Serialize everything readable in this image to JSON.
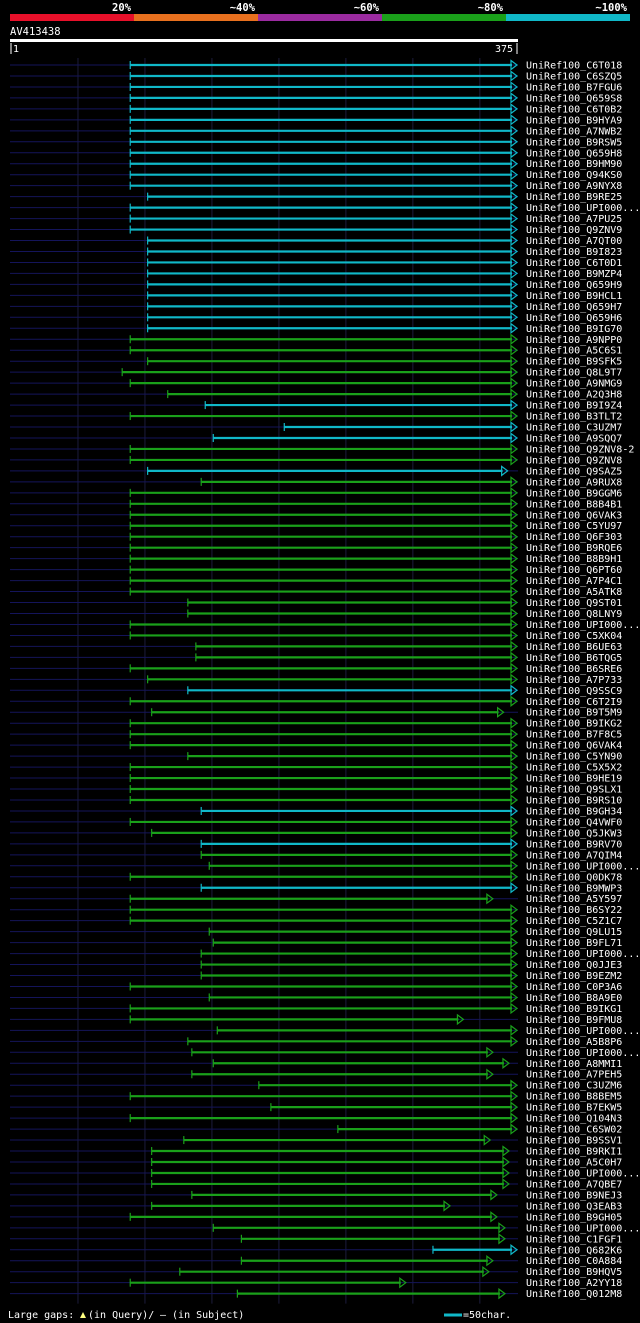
{
  "chart_data": {
    "type": "alignment-overview",
    "title": "AV413438",
    "query_length": 375,
    "scale": {
      "start_label": "1",
      "end_label": "375"
    },
    "identity_legend": [
      {
        "label": "20%",
        "color": "#e8102a"
      },
      {
        "label": "~40%",
        "color": "#e8701e"
      },
      {
        "label": "~60%",
        "color": "#9b2ba0"
      },
      {
        "label": "~80%",
        "color": "#1aa01a"
      },
      {
        "label": "~100%",
        "color": "#10b8c8"
      }
    ],
    "footer": {
      "gaps_label": "Large gaps:",
      "gaps_query": "(in Query)/",
      "gaps_subject": "– (in Subject)",
      "scale_label": "=50char."
    },
    "hits": [
      {
        "label": "UniRef100_C6T018",
        "start": 90,
        "end": 375,
        "color": "#10b8c8"
      },
      {
        "label": "UniRef100_C6SZQ5",
        "start": 90,
        "end": 375,
        "color": "#10b8c8"
      },
      {
        "label": "UniRef100_B7FGU6",
        "start": 90,
        "end": 375,
        "color": "#10b8c8"
      },
      {
        "label": "UniRef100_Q659S8",
        "start": 90,
        "end": 375,
        "color": "#10b8c8"
      },
      {
        "label": "UniRef100_C6T0B2",
        "start": 90,
        "end": 375,
        "color": "#10b8c8"
      },
      {
        "label": "UniRef100_B9HYA9",
        "start": 90,
        "end": 375,
        "color": "#10b8c8"
      },
      {
        "label": "UniRef100_A7NWB2",
        "start": 90,
        "end": 375,
        "color": "#10b8c8"
      },
      {
        "label": "UniRef100_B9RSW5",
        "start": 90,
        "end": 375,
        "color": "#10b8c8"
      },
      {
        "label": "UniRef100_Q659H8",
        "start": 90,
        "end": 375,
        "color": "#10b8c8"
      },
      {
        "label": "UniRef100_B9HM90",
        "start": 90,
        "end": 375,
        "color": "#10b8c8"
      },
      {
        "label": "UniRef100_Q94KS0",
        "start": 90,
        "end": 375,
        "color": "#10b8c8"
      },
      {
        "label": "UniRef100_A9NYX8",
        "start": 90,
        "end": 375,
        "color": "#10b8c8"
      },
      {
        "label": "UniRef100_B9RE25",
        "start": 103,
        "end": 375,
        "color": "#10b8c8"
      },
      {
        "label": "UniRef100_UPI000...",
        "start": 90,
        "end": 375,
        "color": "#10b8c8"
      },
      {
        "label": "UniRef100_A7PU25",
        "start": 90,
        "end": 375,
        "color": "#10b8c8"
      },
      {
        "label": "UniRef100_Q9ZNV9",
        "start": 90,
        "end": 375,
        "color": "#10b8c8"
      },
      {
        "label": "UniRef100_A7QT00",
        "start": 103,
        "end": 375,
        "color": "#10b8c8"
      },
      {
        "label": "UniRef100_B9I823",
        "start": 103,
        "end": 375,
        "color": "#10b8c8"
      },
      {
        "label": "UniRef100_C6T0D1",
        "start": 103,
        "end": 375,
        "color": "#10b8c8"
      },
      {
        "label": "UniRef100_B9MZP4",
        "start": 103,
        "end": 375,
        "color": "#10b8c8"
      },
      {
        "label": "UniRef100_Q659H9",
        "start": 103,
        "end": 375,
        "color": "#10b8c8"
      },
      {
        "label": "UniRef100_B9HCL1",
        "start": 103,
        "end": 375,
        "color": "#10b8c8"
      },
      {
        "label": "UniRef100_Q659H7",
        "start": 103,
        "end": 375,
        "color": "#10b8c8"
      },
      {
        "label": "UniRef100_Q659H6",
        "start": 103,
        "end": 375,
        "color": "#10b8c8"
      },
      {
        "label": "UniRef100_B9IG70",
        "start": 103,
        "end": 375,
        "color": "#10b8c8"
      },
      {
        "label": "UniRef100_A9NPP0",
        "start": 90,
        "end": 375,
        "color": "#1aa01a"
      },
      {
        "label": "UniRef100_A5C6S1",
        "start": 90,
        "end": 375,
        "color": "#1aa01a"
      },
      {
        "label": "UniRef100_B9SFK5",
        "start": 103,
        "end": 375,
        "color": "#1aa01a"
      },
      {
        "label": "UniRef100_Q8L9T7",
        "start": 84,
        "end": 375,
        "color": "#1aa01a"
      },
      {
        "label": "UniRef100_A9NMG9",
        "start": 90,
        "end": 375,
        "color": "#1aa01a"
      },
      {
        "label": "UniRef100_A2Q3H8",
        "start": 118,
        "end": 375,
        "color": "#1aa01a"
      },
      {
        "label": "UniRef100_B9I9Z4",
        "start": 146,
        "end": 375,
        "color": "#10b8c8"
      },
      {
        "label": "UniRef100_B3TLT2",
        "start": 90,
        "end": 375,
        "color": "#1aa01a"
      },
      {
        "label": "UniRef100_C3UZM7",
        "start": 205,
        "end": 375,
        "color": "#10b8c8"
      },
      {
        "label": "UniRef100_A9SQQ7",
        "start": 152,
        "end": 375,
        "color": "#10b8c8"
      },
      {
        "label": "UniRef100_Q9ZNV8-2",
        "start": 90,
        "end": 375,
        "color": "#1aa01a"
      },
      {
        "label": "UniRef100_Q9ZNV8",
        "start": 90,
        "end": 375,
        "color": "#1aa01a"
      },
      {
        "label": "UniRef100_Q9SAZ5",
        "start": 103,
        "end": 368,
        "color": "#10b8c8"
      },
      {
        "label": "UniRef100_A9RUX8",
        "start": 143,
        "end": 375,
        "color": "#1aa01a"
      },
      {
        "label": "UniRef100_B9GGM6",
        "start": 90,
        "end": 375,
        "color": "#1aa01a"
      },
      {
        "label": "UniRef100_B8B4B1",
        "start": 90,
        "end": 375,
        "color": "#1aa01a"
      },
      {
        "label": "UniRef100_Q6VAK3",
        "start": 90,
        "end": 375,
        "color": "#1aa01a"
      },
      {
        "label": "UniRef100_C5YU97",
        "start": 90,
        "end": 375,
        "color": "#1aa01a"
      },
      {
        "label": "UniRef100_Q6F303",
        "start": 90,
        "end": 375,
        "color": "#1aa01a"
      },
      {
        "label": "UniRef100_B9RQE6",
        "start": 90,
        "end": 375,
        "color": "#1aa01a"
      },
      {
        "label": "UniRef100_B8B9H1",
        "start": 90,
        "end": 375,
        "color": "#1aa01a"
      },
      {
        "label": "UniRef100_Q6PT60",
        "start": 90,
        "end": 375,
        "color": "#1aa01a"
      },
      {
        "label": "UniRef100_A7P4C1",
        "start": 90,
        "end": 375,
        "color": "#1aa01a"
      },
      {
        "label": "UniRef100_A5ATK8",
        "start": 90,
        "end": 375,
        "color": "#1aa01a"
      },
      {
        "label": "UniRef100_Q9ST01",
        "start": 133,
        "end": 375,
        "color": "#1aa01a"
      },
      {
        "label": "UniRef100_Q8LNY9",
        "start": 133,
        "end": 375,
        "color": "#1aa01a"
      },
      {
        "label": "UniRef100_UPI000...",
        "start": 90,
        "end": 375,
        "color": "#1aa01a"
      },
      {
        "label": "UniRef100_C5XK04",
        "start": 90,
        "end": 375,
        "color": "#1aa01a"
      },
      {
        "label": "UniRef100_B6UE63",
        "start": 139,
        "end": 375,
        "color": "#1aa01a"
      },
      {
        "label": "UniRef100_B6TQG5",
        "start": 139,
        "end": 375,
        "color": "#1aa01a"
      },
      {
        "label": "UniRef100_B6SRE6",
        "start": 90,
        "end": 375,
        "color": "#1aa01a"
      },
      {
        "label": "UniRef100_A7P733",
        "start": 103,
        "end": 375,
        "color": "#1aa01a"
      },
      {
        "label": "UniRef100_Q9SSC9",
        "start": 133,
        "end": 375,
        "color": "#10b8c8"
      },
      {
        "label": "UniRef100_C6T2I9",
        "start": 90,
        "end": 375,
        "color": "#1aa01a"
      },
      {
        "label": "UniRef100_B9T5M9",
        "start": 106,
        "end": 365,
        "color": "#1aa01a"
      },
      {
        "label": "UniRef100_B9IKG2",
        "start": 90,
        "end": 375,
        "color": "#1aa01a"
      },
      {
        "label": "UniRef100_B7F8C5",
        "start": 90,
        "end": 375,
        "color": "#1aa01a"
      },
      {
        "label": "UniRef100_Q6VAK4",
        "start": 90,
        "end": 375,
        "color": "#1aa01a"
      },
      {
        "label": "UniRef100_C5YN90",
        "start": 133,
        "end": 375,
        "color": "#1aa01a"
      },
      {
        "label": "UniRef100_C5X5X2",
        "start": 90,
        "end": 375,
        "color": "#1aa01a"
      },
      {
        "label": "UniRef100_B9HE19",
        "start": 90,
        "end": 375,
        "color": "#1aa01a"
      },
      {
        "label": "UniRef100_Q9SLX1",
        "start": 90,
        "end": 375,
        "color": "#1aa01a"
      },
      {
        "label": "UniRef100_B9RS10",
        "start": 90,
        "end": 375,
        "color": "#1aa01a"
      },
      {
        "label": "UniRef100_B9GH34",
        "start": 143,
        "end": 375,
        "color": "#10b8c8"
      },
      {
        "label": "UniRef100_Q4VWF0",
        "start": 90,
        "end": 375,
        "color": "#1aa01a"
      },
      {
        "label": "UniRef100_Q5JKW3",
        "start": 106,
        "end": 375,
        "color": "#1aa01a"
      },
      {
        "label": "UniRef100_B9RV70",
        "start": 143,
        "end": 375,
        "color": "#10b8c8"
      },
      {
        "label": "UniRef100_A7QIM4",
        "start": 143,
        "end": 375,
        "color": "#1aa01a"
      },
      {
        "label": "UniRef100_UPI000...",
        "start": 149,
        "end": 375,
        "color": "#1aa01a"
      },
      {
        "label": "UniRef100_Q0DK78",
        "start": 90,
        "end": 375,
        "color": "#1aa01a"
      },
      {
        "label": "UniRef100_B9MWP3",
        "start": 143,
        "end": 375,
        "color": "#10b8c8"
      },
      {
        "label": "UniRef100_A5Y597",
        "start": 90,
        "end": 357,
        "color": "#1aa01a"
      },
      {
        "label": "UniRef100_B6SY22",
        "start": 90,
        "end": 375,
        "color": "#1aa01a"
      },
      {
        "label": "UniRef100_C5Z1C7",
        "start": 90,
        "end": 375,
        "color": "#1aa01a"
      },
      {
        "label": "UniRef100_Q9LU15",
        "start": 149,
        "end": 375,
        "color": "#1aa01a"
      },
      {
        "label": "UniRef100_B9FL71",
        "start": 152,
        "end": 375,
        "color": "#1aa01a"
      },
      {
        "label": "UniRef100_UPI000...",
        "start": 143,
        "end": 375,
        "color": "#1aa01a"
      },
      {
        "label": "UniRef100_Q0JJE3",
        "start": 143,
        "end": 375,
        "color": "#1aa01a"
      },
      {
        "label": "UniRef100_B9EZM2",
        "start": 143,
        "end": 375,
        "color": "#1aa01a"
      },
      {
        "label": "UniRef100_C0P3A6",
        "start": 90,
        "end": 375,
        "color": "#1aa01a"
      },
      {
        "label": "UniRef100_B8A9E0",
        "start": 149,
        "end": 375,
        "color": "#1aa01a"
      },
      {
        "label": "UniRef100_B9IKG1",
        "start": 90,
        "end": 375,
        "color": "#1aa01a"
      },
      {
        "label": "UniRef100_B9FMU8",
        "start": 90,
        "end": 335,
        "color": "#1aa01a"
      },
      {
        "label": "UniRef100_UPI000...",
        "start": 155,
        "end": 375,
        "color": "#1aa01a"
      },
      {
        "label": "UniRef100_A5B8P6",
        "start": 133,
        "end": 375,
        "color": "#1aa01a"
      },
      {
        "label": "UniRef100_UPI000...",
        "start": 136,
        "end": 357,
        "color": "#1aa01a"
      },
      {
        "label": "UniRef100_A8MMI1",
        "start": 152,
        "end": 369,
        "color": "#1aa01a"
      },
      {
        "label": "UniRef100_A7PEH5",
        "start": 136,
        "end": 357,
        "color": "#1aa01a"
      },
      {
        "label": "UniRef100_C3UZM6",
        "start": 186,
        "end": 375,
        "color": "#1aa01a"
      },
      {
        "label": "UniRef100_B8BEM5",
        "start": 90,
        "end": 375,
        "color": "#1aa01a"
      },
      {
        "label": "UniRef100_B7EKW5",
        "start": 195,
        "end": 375,
        "color": "#1aa01a"
      },
      {
        "label": "UniRef100_Q104N3",
        "start": 90,
        "end": 375,
        "color": "#1aa01a"
      },
      {
        "label": "UniRef100_C6SW02",
        "start": 245,
        "end": 375,
        "color": "#1aa01a"
      },
      {
        "label": "UniRef100_B9SSV1",
        "start": 130,
        "end": 355,
        "color": "#1aa01a"
      },
      {
        "label": "UniRef100_B9RKI1",
        "start": 106,
        "end": 369,
        "color": "#1aa01a"
      },
      {
        "label": "UniRef100_A5C0H7",
        "start": 106,
        "end": 369,
        "color": "#1aa01a"
      },
      {
        "label": "UniRef100_UPI000...",
        "start": 106,
        "end": 369,
        "color": "#1aa01a"
      },
      {
        "label": "UniRef100_A7QBE7",
        "start": 106,
        "end": 369,
        "color": "#1aa01a"
      },
      {
        "label": "UniRef100_B9NEJ3",
        "start": 136,
        "end": 360,
        "color": "#1aa01a"
      },
      {
        "label": "UniRef100_Q3EAB3",
        "start": 106,
        "end": 325,
        "color": "#1aa01a"
      },
      {
        "label": "UniRef100_B9GH05",
        "start": 90,
        "end": 360,
        "color": "#1aa01a"
      },
      {
        "label": "UniRef100_UPI000...",
        "start": 152,
        "end": 366,
        "color": "#1aa01a"
      },
      {
        "label": "UniRef100_C1FGF1",
        "start": 173,
        "end": 366,
        "color": "#1aa01a"
      },
      {
        "label": "UniRef100_Q682K6",
        "start": 316,
        "end": 375,
        "color": "#10b8c8"
      },
      {
        "label": "UniRef100_C0A884",
        "start": 173,
        "end": 357,
        "color": "#1aa01a"
      },
      {
        "label": "UniRef100_B9HQV5",
        "start": 127,
        "end": 354,
        "color": "#1aa01a"
      },
      {
        "label": "UniRef100_A2YY18",
        "start": 90,
        "end": 292,
        "color": "#1aa01a"
      },
      {
        "label": "UniRef100_Q012M8",
        "start": 170,
        "end": 366,
        "color": "#1aa01a"
      }
    ]
  }
}
